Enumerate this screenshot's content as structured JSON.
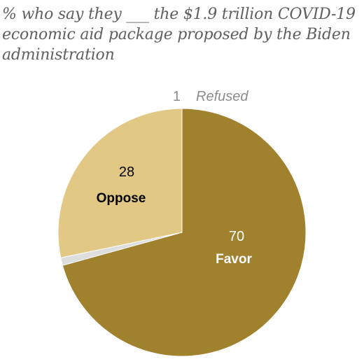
{
  "chart_data": {
    "type": "pie",
    "title": "% who say they ___ the $1.9 trillion COVID-19 economic aid package proposed by the Biden administration",
    "slices": [
      {
        "label": "Favor",
        "value": 70,
        "color": "#a0812e",
        "text_color": "#ffffff"
      },
      {
        "label": "Refused",
        "value": 1,
        "color": "#dedede",
        "text_color": "#8c8c8c"
      },
      {
        "label": "Oppose",
        "value": 28,
        "color": "#e1c985",
        "text_color": "#000000"
      }
    ],
    "value_labels": [
      "70",
      "1",
      "28"
    ],
    "direction": "clockwise",
    "legend": "none"
  }
}
